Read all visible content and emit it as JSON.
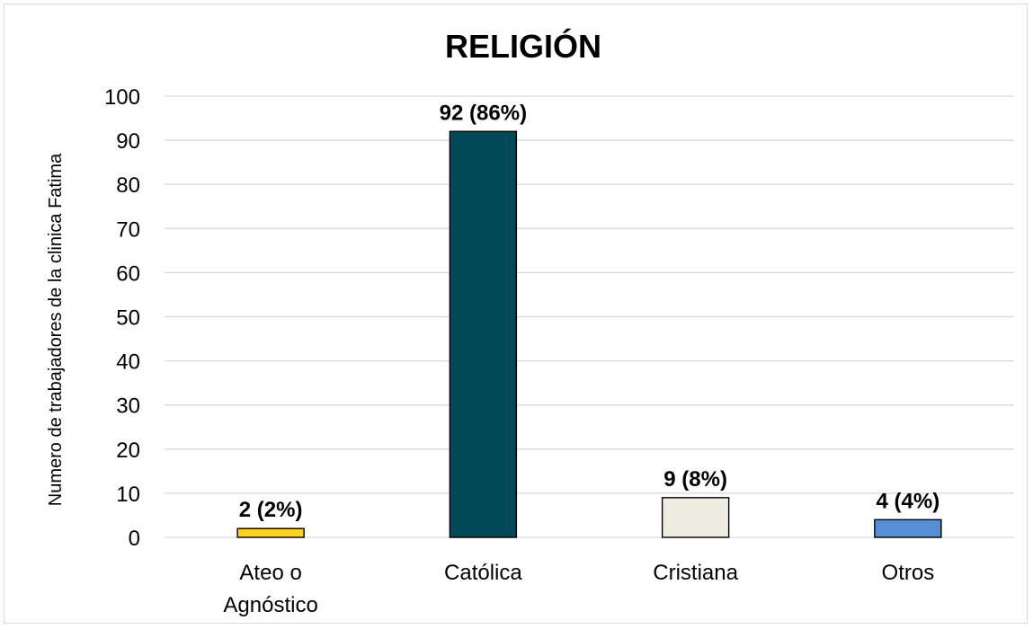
{
  "chart_data": {
    "type": "bar",
    "title": "RELIGIÓN",
    "ylabel": "Numero de trabajadores de la clinica Fatima",
    "xlabel": "",
    "ylim": [
      0,
      100
    ],
    "yticks": [
      0,
      10,
      20,
      30,
      40,
      50,
      60,
      70,
      80,
      90,
      100
    ],
    "grid": true,
    "legend": "none",
    "categories": [
      {
        "label_lines": [
          "Ateo o",
          "Agnóstico"
        ],
        "value": 2,
        "data_label": "2 (2%)",
        "color": "#ffd21f"
      },
      {
        "label_lines": [
          "Católica"
        ],
        "value": 92,
        "data_label": "92 (86%)",
        "color": "#014957"
      },
      {
        "label_lines": [
          "Cristiana"
        ],
        "value": 9,
        "data_label": "9 (8%)",
        "color": "#eeece1"
      },
      {
        "label_lines": [
          "Otros"
        ],
        "value": 4,
        "data_label": "4 (4%)",
        "color": "#578fd6"
      }
    ]
  }
}
